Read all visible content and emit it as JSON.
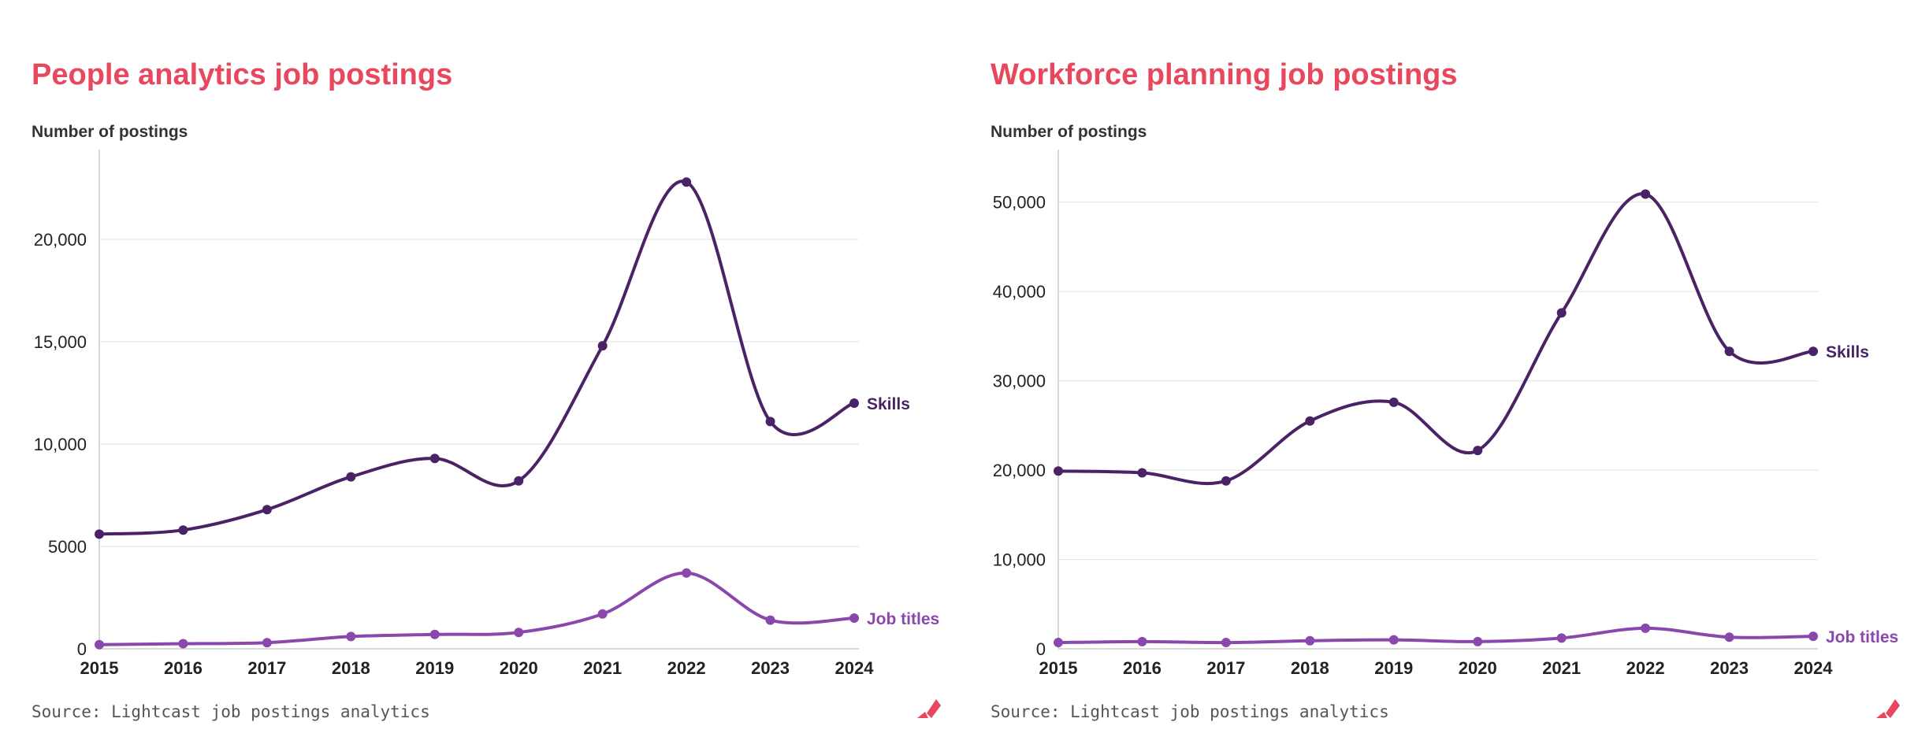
{
  "colors": {
    "title": "#e8475e",
    "skills": "#4a2266",
    "job_titles": "#8a48ad",
    "grid": "#e6e6e6",
    "axis": "#cccccc"
  },
  "charts": [
    {
      "title": "People analytics job postings",
      "ylabel": "Number of postings",
      "source": "Source: Lightcast job postings analytics",
      "logo_icon": "lightcast-logo-icon",
      "series_labels": {
        "skills": "Skills",
        "job_titles": "Job titles"
      },
      "y_ticks": [
        {
          "value": 0,
          "label": "0"
        },
        {
          "value": 5000,
          "label": "5000"
        },
        {
          "value": 10000,
          "label": "10,000"
        },
        {
          "value": 15000,
          "label": "15,000"
        },
        {
          "value": 20000,
          "label": "20,000"
        }
      ],
      "x_labels": [
        "2015",
        "2016",
        "2017",
        "2018",
        "2019",
        "2020",
        "2021",
        "2022",
        "2023",
        "2024"
      ]
    },
    {
      "title": "Workforce planning job postings",
      "ylabel": "Number of postings",
      "source": "Source: Lightcast job postings analytics",
      "logo_icon": "lightcast-logo-icon",
      "series_labels": {
        "skills": "Skills",
        "job_titles": "Job titles"
      },
      "y_ticks": [
        {
          "value": 0,
          "label": "0"
        },
        {
          "value": 10000,
          "label": "10,000"
        },
        {
          "value": 20000,
          "label": "20,000"
        },
        {
          "value": 30000,
          "label": "30,000"
        },
        {
          "value": 40000,
          "label": "40,000"
        },
        {
          "value": 50000,
          "label": "50,000"
        }
      ],
      "x_labels": [
        "2015",
        "2016",
        "2017",
        "2018",
        "2019",
        "2020",
        "2021",
        "2022",
        "2023",
        "2024"
      ]
    }
  ],
  "chart_data": [
    {
      "type": "line",
      "title": "People analytics job postings",
      "ylabel": "Number of postings",
      "xlabel": "",
      "x": [
        2015,
        2016,
        2017,
        2018,
        2019,
        2020,
        2021,
        2022,
        2023,
        2024
      ],
      "ylim": [
        0,
        24000
      ],
      "grid": true,
      "series": [
        {
          "name": "Skills",
          "values": [
            5600,
            5800,
            6800,
            8400,
            9300,
            8200,
            14800,
            22800,
            11100,
            12000
          ]
        },
        {
          "name": "Job titles",
          "values": [
            200,
            250,
            300,
            600,
            700,
            800,
            1700,
            3700,
            1400,
            1500
          ]
        }
      ]
    },
    {
      "type": "line",
      "title": "Workforce planning job postings",
      "ylabel": "Number of postings",
      "xlabel": "",
      "x": [
        2015,
        2016,
        2017,
        2018,
        2019,
        2020,
        2021,
        2022,
        2023,
        2024
      ],
      "ylim": [
        0,
        55000
      ],
      "grid": true,
      "series": [
        {
          "name": "Skills",
          "values": [
            19900,
            19700,
            18800,
            25500,
            27600,
            22200,
            37600,
            50900,
            33300,
            33300
          ]
        },
        {
          "name": "Job titles",
          "values": [
            700,
            800,
            700,
            900,
            1000,
            800,
            1200,
            2300,
            1300,
            1400
          ]
        }
      ]
    }
  ]
}
